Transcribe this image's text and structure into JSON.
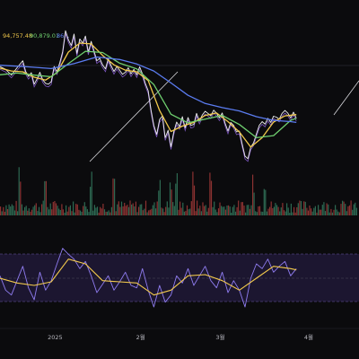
{
  "chart_data": [
    {
      "type": "line",
      "panel": "price",
      "ma_values": [
        {
          "value": "94,757.48",
          "color": "#f2c94c"
        },
        {
          "value": "90,879.01",
          "color": "#6fcf6f"
        },
        {
          "value": "86...",
          "color": "#5b7cf0"
        }
      ],
      "x_ticks": [
        "2025",
        "2월",
        "3월",
        "4월"
      ],
      "x_tick_positions_days": [
        0,
        31,
        59,
        90
      ],
      "xlim_days": [
        -18,
        108
      ],
      "ylim": [
        74000,
        110000
      ],
      "series": [
        {
          "color": "#f0f0f0",
          "values": [
            [
              -18,
              98200
            ],
            [
              -16,
              97500
            ],
            [
              -14,
              96100
            ],
            [
              -12,
              97900
            ],
            [
              -10,
              99600
            ],
            [
              -9,
              97000
            ],
            [
              -8,
              95800
            ],
            [
              -7,
              96700
            ],
            [
              -6,
              93900
            ],
            [
              -5,
              95200
            ],
            [
              -4,
              96800
            ],
            [
              -3,
              95000
            ],
            [
              -2,
              94100
            ],
            [
              -1,
              93900
            ],
            [
              0,
              94500
            ],
            [
              1,
              98200
            ],
            [
              2,
              96900
            ],
            [
              3,
              99200
            ],
            [
              4,
              101800
            ],
            [
              5,
              106900
            ],
            [
              6,
              104700
            ],
            [
              7,
              103300
            ],
            [
              8,
              106100
            ],
            [
              9,
              101400
            ],
            [
              10,
              104900
            ],
            [
              11,
              103900
            ],
            [
              12,
              105600
            ],
            [
              13,
              101700
            ],
            [
              14,
              104300
            ],
            [
              15,
              102000
            ],
            [
              16,
              99600
            ],
            [
              17,
              100200
            ],
            [
              18,
              98600
            ],
            [
              19,
              97600
            ],
            [
              20,
              100100
            ],
            [
              21,
              98400
            ],
            [
              22,
              97000
            ],
            [
              23,
              98200
            ],
            [
              24,
              97300
            ],
            [
              25,
              96300
            ],
            [
              26,
              96800
            ],
            [
              27,
              97900
            ],
            [
              28,
              96400
            ],
            [
              29,
              97500
            ],
            [
              30,
              96200
            ],
            [
              31,
              98100
            ],
            [
              32,
              96400
            ],
            [
              33,
              94100
            ],
            [
              34,
              92300
            ],
            [
              35,
              87600
            ],
            [
              36,
              83900
            ],
            [
              37,
              81700
            ],
            [
              38,
              85300
            ],
            [
              39,
              86200
            ],
            [
              40,
              80900
            ],
            [
              41,
              82700
            ],
            [
              42,
              78700
            ],
            [
              43,
              82400
            ],
            [
              44,
              84700
            ],
            [
              45,
              83600
            ],
            [
              46,
              86000
            ],
            [
              47,
              83300
            ],
            [
              48,
              85800
            ],
            [
              49,
              83900
            ],
            [
              50,
              84100
            ],
            [
              51,
              86800
            ],
            [
              52,
              84900
            ],
            [
              53,
              86400
            ],
            [
              54,
              87300
            ],
            [
              55,
              86800
            ],
            [
              56,
              86200
            ],
            [
              57,
              87600
            ],
            [
              58,
              86800
            ],
            [
              59,
              85700
            ],
            [
              60,
              86900
            ],
            [
              61,
              84400
            ],
            [
              62,
              82500
            ],
            [
              63,
              84600
            ],
            [
              64,
              83900
            ],
            [
              65,
              82300
            ],
            [
              66,
              82500
            ],
            [
              67,
              79400
            ],
            [
              68,
              76400
            ],
            [
              69,
              75800
            ],
            [
              70,
              78600
            ],
            [
              71,
              79600
            ],
            [
              72,
              81800
            ],
            [
              73,
              83900
            ],
            [
              74,
              84800
            ],
            [
              75,
              84200
            ],
            [
              76,
              85600
            ],
            [
              77,
              84600
            ],
            [
              78,
              86100
            ],
            [
              79,
              85900
            ],
            [
              80,
              85400
            ],
            [
              81,
              86800
            ],
            [
              82,
              87500
            ],
            [
              83,
              86900
            ],
            [
              84,
              85700
            ],
            [
              85,
              87100
            ],
            [
              86,
              85600
            ]
          ]
        },
        {
          "color": "#f2c94c",
          "values": [
            [
              -18,
              97800
            ],
            [
              -14,
              97100
            ],
            [
              -10,
              96900
            ],
            [
              -6,
              95600
            ],
            [
              -2,
              94900
            ],
            [
              2,
              96700
            ],
            [
              6,
              101700
            ],
            [
              10,
              103900
            ],
            [
              14,
              103700
            ],
            [
              18,
              100900
            ],
            [
              22,
              98600
            ],
            [
              26,
              97300
            ],
            [
              30,
              96900
            ],
            [
              34,
              94800
            ],
            [
              38,
              87500
            ],
            [
              42,
              82400
            ],
            [
              46,
              83700
            ],
            [
              50,
              84600
            ],
            [
              54,
              86300
            ],
            [
              58,
              86900
            ],
            [
              62,
              84800
            ],
            [
              66,
              82300
            ],
            [
              70,
              78600
            ],
            [
              74,
              80900
            ],
            [
              78,
              84700
            ],
            [
              82,
              86200
            ],
            [
              86,
              86500
            ]
          ]
        },
        {
          "color": "#6fcf6f",
          "values": [
            [
              -18,
              96200
            ],
            [
              -12,
              96600
            ],
            [
              -6,
              96100
            ],
            [
              0,
              95700
            ],
            [
              6,
              98900
            ],
            [
              12,
              101900
            ],
            [
              18,
              101600
            ],
            [
              24,
              99000
            ],
            [
              30,
              97600
            ],
            [
              36,
              93800
            ],
            [
              42,
              86600
            ],
            [
              48,
              84500
            ],
            [
              54,
              85400
            ],
            [
              60,
              86300
            ],
            [
              66,
              84100
            ],
            [
              72,
              80900
            ],
            [
              78,
              81400
            ],
            [
              84,
              85100
            ],
            [
              86,
              85600
            ]
          ]
        },
        {
          "color": "#5b7cf0",
          "values": [
            [
              -18,
              98500
            ],
            [
              -8,
              98100
            ],
            [
              0,
              97700
            ],
            [
              8,
              98900
            ],
            [
              16,
              100500
            ],
            [
              24,
              99900
            ],
            [
              30,
              98800
            ],
            [
              36,
              97100
            ],
            [
              42,
              94200
            ],
            [
              48,
              91200
            ],
            [
              54,
              89200
            ],
            [
              60,
              88200
            ],
            [
              66,
              87400
            ],
            [
              72,
              86000
            ],
            [
              78,
              85100
            ],
            [
              84,
              84800
            ],
            [
              86,
              84600
            ]
          ]
        }
      ]
    },
    {
      "type": "bar",
      "panel": "volume",
      "spike_days": [
        -11,
        -2,
        14,
        22,
        38,
        42,
        44,
        50,
        56,
        71,
        75
      ]
    },
    {
      "type": "line",
      "panel": "rsi",
      "ylim": [
        20,
        80
      ],
      "band": [
        30,
        70
      ],
      "series": [
        {
          "color": "#8f7cf0",
          "values": [
            [
              -18,
              52
            ],
            [
              -16,
              40
            ],
            [
              -14,
              36
            ],
            [
              -12,
              48
            ],
            [
              -10,
              60
            ],
            [
              -8,
              42
            ],
            [
              -6,
              32
            ],
            [
              -4,
              55
            ],
            [
              -2,
              40
            ],
            [
              0,
              48
            ],
            [
              2,
              62
            ],
            [
              4,
              75
            ],
            [
              6,
              70
            ],
            [
              8,
              66
            ],
            [
              10,
              58
            ],
            [
              12,
              64
            ],
            [
              14,
              52
            ],
            [
              16,
              38
            ],
            [
              18,
              45
            ],
            [
              20,
              52
            ],
            [
              22,
              40
            ],
            [
              24,
              47
            ],
            [
              26,
              55
            ],
            [
              28,
              44
            ],
            [
              30,
              42
            ],
            [
              32,
              58
            ],
            [
              34,
              40
            ],
            [
              36,
              26
            ],
            [
              38,
              44
            ],
            [
              40,
              30
            ],
            [
              42,
              36
            ],
            [
              44,
              52
            ],
            [
              46,
              46
            ],
            [
              48,
              58
            ],
            [
              50,
              44
            ],
            [
              52,
              52
            ],
            [
              54,
              60
            ],
            [
              56,
              48
            ],
            [
              58,
              42
            ],
            [
              60,
              55
            ],
            [
              62,
              38
            ],
            [
              64,
              48
            ],
            [
              66,
              40
            ],
            [
              68,
              26
            ],
            [
              70,
              50
            ],
            [
              72,
              62
            ],
            [
              74,
              58
            ],
            [
              76,
              66
            ],
            [
              78,
              55
            ],
            [
              80,
              60
            ],
            [
              82,
              64
            ],
            [
              84,
              52
            ],
            [
              86,
              58
            ]
          ]
        },
        {
          "color": "#f2c94c",
          "values": [
            [
              -18,
              50
            ],
            [
              -12,
              46
            ],
            [
              -6,
              44
            ],
            [
              0,
              47
            ],
            [
              6,
              66
            ],
            [
              12,
              62
            ],
            [
              18,
              48
            ],
            [
              24,
              47
            ],
            [
              30,
              46
            ],
            [
              36,
              36
            ],
            [
              42,
              40
            ],
            [
              48,
              52
            ],
            [
              54,
              53
            ],
            [
              60,
              48
            ],
            [
              66,
              40
            ],
            [
              72,
              50
            ],
            [
              78,
              60
            ],
            [
              84,
              58
            ],
            [
              86,
              57
            ]
          ]
        }
      ]
    }
  ]
}
